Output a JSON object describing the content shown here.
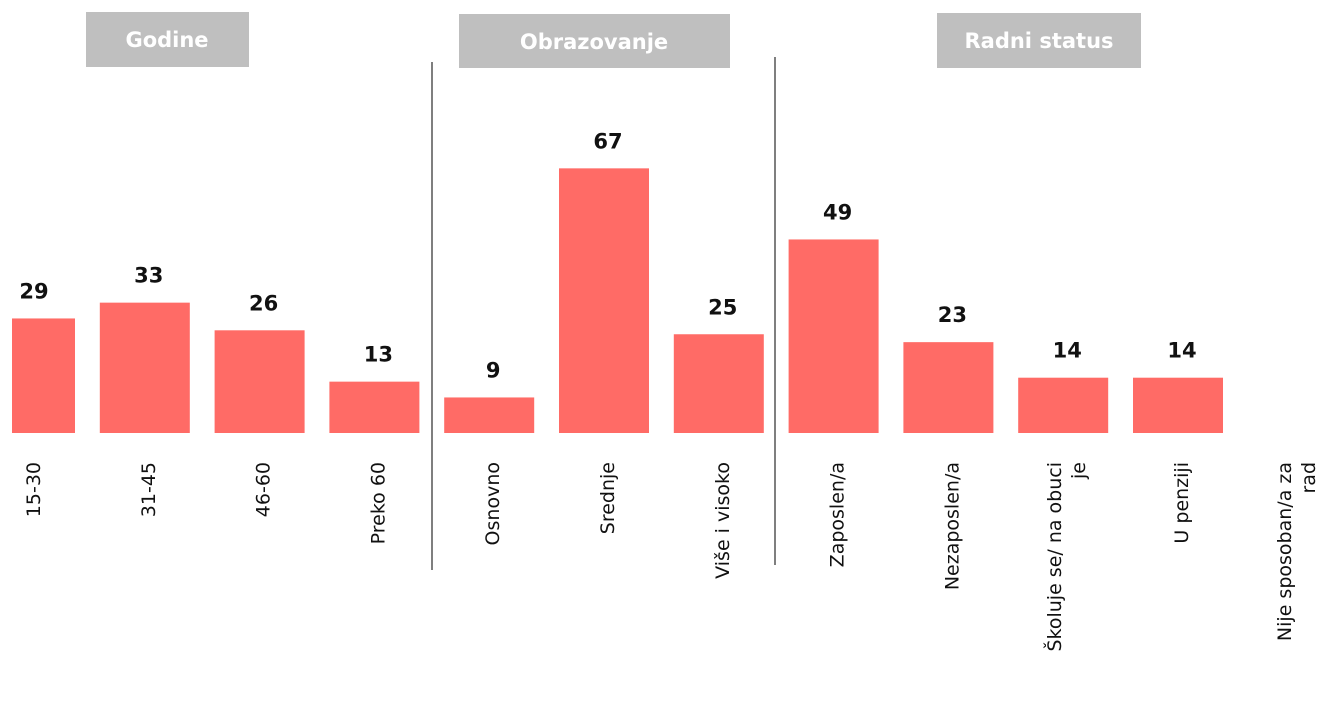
{
  "chart_data": {
    "type": "bar",
    "groups": [
      "Godine",
      "Obrazovanje",
      "Radni status"
    ],
    "categories": [
      "15-30",
      "31-45",
      "46-60",
      "Preko 60",
      "Osnovno",
      "Srednje",
      "Više i visoko",
      "Zaposlen/a",
      "Nezaposlen/a",
      "Školuje se/ na obuci je",
      "U penziji",
      "Nije sposoban/a za rad"
    ],
    "values": [
      29,
      33,
      26,
      13,
      9,
      67,
      25,
      49,
      23,
      14,
      14,
      null
    ],
    "color": "#ff6b66"
  }
}
